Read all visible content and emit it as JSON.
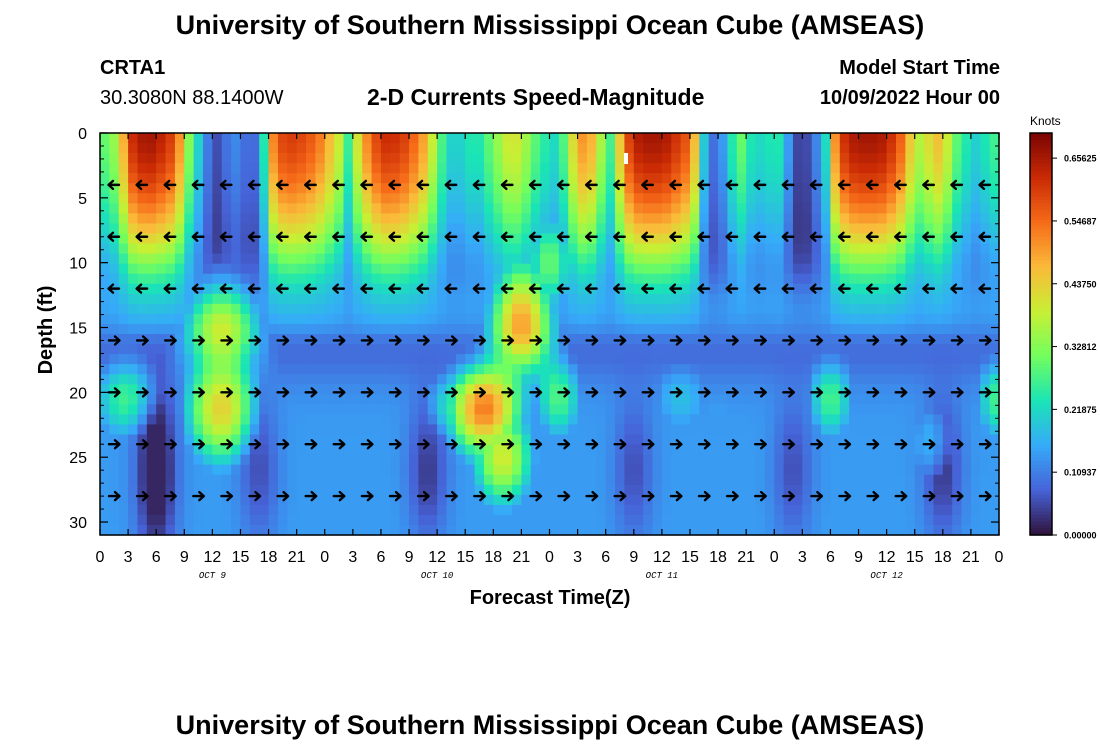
{
  "header": {
    "title": "University of Southern Mississippi Ocean Cube (AMSEAS)",
    "station_name": "CRTA1",
    "station_coords": "30.3080N  88.1400W",
    "plot_title": "2-D Currents Speed-Magnitude",
    "model_start_label": "Model Start Time",
    "model_start_value": "10/09/2022 Hour 00"
  },
  "footer": {
    "title": "University of Southern Mississippi Ocean Cube (AMSEAS)"
  },
  "chart_data": {
    "type": "heatmap",
    "title": "2-D Currents Speed-Magnitude",
    "xlabel": "Forecast Time(Z)",
    "ylabel": "Depth (ft)",
    "x_range_hours": [
      0,
      96
    ],
    "y_range_ft": [
      0,
      31
    ],
    "x_tick_labels": [
      "0",
      "3",
      "6",
      "9",
      "12",
      "15",
      "18",
      "21",
      "0",
      "3",
      "6",
      "9",
      "12",
      "15",
      "18",
      "21",
      "0",
      "3",
      "6",
      "9",
      "12",
      "15",
      "18",
      "21",
      "0",
      "3",
      "6",
      "9",
      "12",
      "15",
      "18",
      "21",
      "0"
    ],
    "y_tick_labels": [
      "0",
      "5",
      "10",
      "15",
      "20",
      "25",
      "30"
    ],
    "day_labels": [
      "OCT 9",
      "OCT 10",
      "OCT 11",
      "OCT 12"
    ],
    "colorbar": {
      "label": "Knots",
      "tick_labels": [
        "0.65625",
        "0.54687",
        "0.43750",
        "0.32812",
        "0.21875",
        "0.10937",
        "0.00000"
      ],
      "range": [
        0.0,
        0.7
      ],
      "colors": [
        "#30123b",
        "#4662d7",
        "#36aaf9",
        "#1ae4b6",
        "#72fe5e",
        "#c8ef34",
        "#faba39",
        "#f66b19",
        "#ca2a04",
        "#7a0403"
      ]
    },
    "arrow_depths_ft": [
      4,
      8,
      12,
      16,
      20,
      24,
      28
    ],
    "surface_speed_profile": [
      0.3,
      0.3,
      0.45,
      0.62,
      0.66,
      0.66,
      0.62,
      0.58,
      0.36,
      0.22,
      0.1,
      0.05,
      0.12,
      0.12,
      0.05,
      0.2,
      0.52,
      0.6,
      0.6,
      0.58,
      0.55,
      0.48,
      0.4,
      0.25,
      0.45,
      0.55,
      0.62,
      0.62,
      0.6,
      0.55,
      0.48,
      0.35,
      0.22,
      0.2,
      0.24,
      0.24,
      0.3,
      0.36,
      0.42,
      0.38,
      0.3,
      0.25,
      0.22,
      0.3,
      0.48,
      0.52,
      0.4,
      0.25,
      0.45,
      0.62,
      0.66,
      0.66,
      0.66,
      0.62,
      0.58,
      0.45,
      0.12,
      0.08,
      0.2,
      0.32,
      0.24,
      0.22,
      0.24,
      0.24,
      0.06,
      0.04,
      0.1,
      0.22,
      0.55,
      0.64,
      0.66,
      0.66,
      0.66,
      0.62,
      0.55,
      0.42,
      0.35,
      0.48,
      0.42,
      0.3,
      0.24,
      0.2,
      0.25,
      0.28
    ]
  }
}
